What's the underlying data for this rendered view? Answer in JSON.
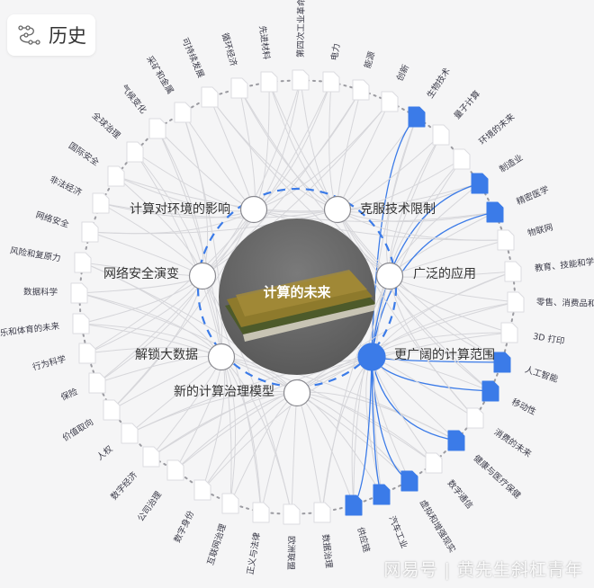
{
  "header": {
    "title": "历史",
    "icon": "timeline-path-icon"
  },
  "center": {
    "title": "计算的未来",
    "image": "cpu-chip-photo"
  },
  "colors": {
    "accent": "#3b7be8",
    "edge": "#d6d6da",
    "node_fill": "#ffffff",
    "background": "#f5f5f6"
  },
  "mid_nodes": [
    {
      "label": "计算对环境的影响",
      "highlighted": false
    },
    {
      "label": "克服技术限制",
      "highlighted": false
    },
    {
      "label": "网络安全演变",
      "highlighted": false
    },
    {
      "label": "广泛的应用",
      "highlighted": false
    },
    {
      "label": "解锁大数据",
      "highlighted": false
    },
    {
      "label": "新的计算治理模型",
      "highlighted": false
    },
    {
      "label": "更广阔的计算范围",
      "highlighted": true
    }
  ],
  "outer_nodes": [
    {
      "label": "第四次工业革命",
      "highlighted": false
    },
    {
      "label": "电力",
      "highlighted": false
    },
    {
      "label": "能源",
      "highlighted": false
    },
    {
      "label": "创新",
      "highlighted": false
    },
    {
      "label": "生物技术",
      "highlighted": true
    },
    {
      "label": "量子计算",
      "highlighted": false
    },
    {
      "label": "环境的未来",
      "highlighted": false
    },
    {
      "label": "制造业",
      "highlighted": true
    },
    {
      "label": "精密医学",
      "highlighted": true
    },
    {
      "label": "物联网",
      "highlighted": false
    },
    {
      "label": "教育、技能和学习",
      "highlighted": false
    },
    {
      "label": "零售、消费品和生活方式",
      "highlighted": false
    },
    {
      "label": "3D 打印",
      "highlighted": false
    },
    {
      "label": "人工智能",
      "highlighted": true
    },
    {
      "label": "移动性",
      "highlighted": true
    },
    {
      "label": "消费的未来",
      "highlighted": false
    },
    {
      "label": "健康与医疗保健",
      "highlighted": true
    },
    {
      "label": "数字通信",
      "highlighted": false
    },
    {
      "label": "虚拟和增强现实",
      "highlighted": true
    },
    {
      "label": "汽车工业",
      "highlighted": true
    },
    {
      "label": "供应链",
      "highlighted": true
    },
    {
      "label": "数据治理",
      "highlighted": false
    },
    {
      "label": "欧洲联盟",
      "highlighted": false
    },
    {
      "label": "正义与法律",
      "highlighted": false
    },
    {
      "label": "互联网治理",
      "highlighted": false
    },
    {
      "label": "数字身份",
      "highlighted": false
    },
    {
      "label": "公司治理",
      "highlighted": false
    },
    {
      "label": "数字经济",
      "highlighted": false
    },
    {
      "label": "人权",
      "highlighted": false
    },
    {
      "label": "价值取向",
      "highlighted": false
    },
    {
      "label": "保险",
      "highlighted": false
    },
    {
      "label": "行为科学",
      "highlighted": false
    },
    {
      "label": "媒体、娱乐和体育的未来",
      "highlighted": false
    },
    {
      "label": "数据科学",
      "highlighted": false
    },
    {
      "label": "风险和复原力",
      "highlighted": false
    },
    {
      "label": "网络安全",
      "highlighted": false
    },
    {
      "label": "非法经济",
      "highlighted": false
    },
    {
      "label": "国际安全",
      "highlighted": false
    },
    {
      "label": "全球治理",
      "highlighted": false
    },
    {
      "label": "气候变化",
      "highlighted": false
    },
    {
      "label": "采矿和金属",
      "highlighted": false
    },
    {
      "label": "可持续发展",
      "highlighted": false
    },
    {
      "label": "循环经济",
      "highlighted": false
    },
    {
      "label": "先进材料",
      "highlighted": false
    }
  ],
  "watermark": "网易号 | 黄先生斜杠青年"
}
